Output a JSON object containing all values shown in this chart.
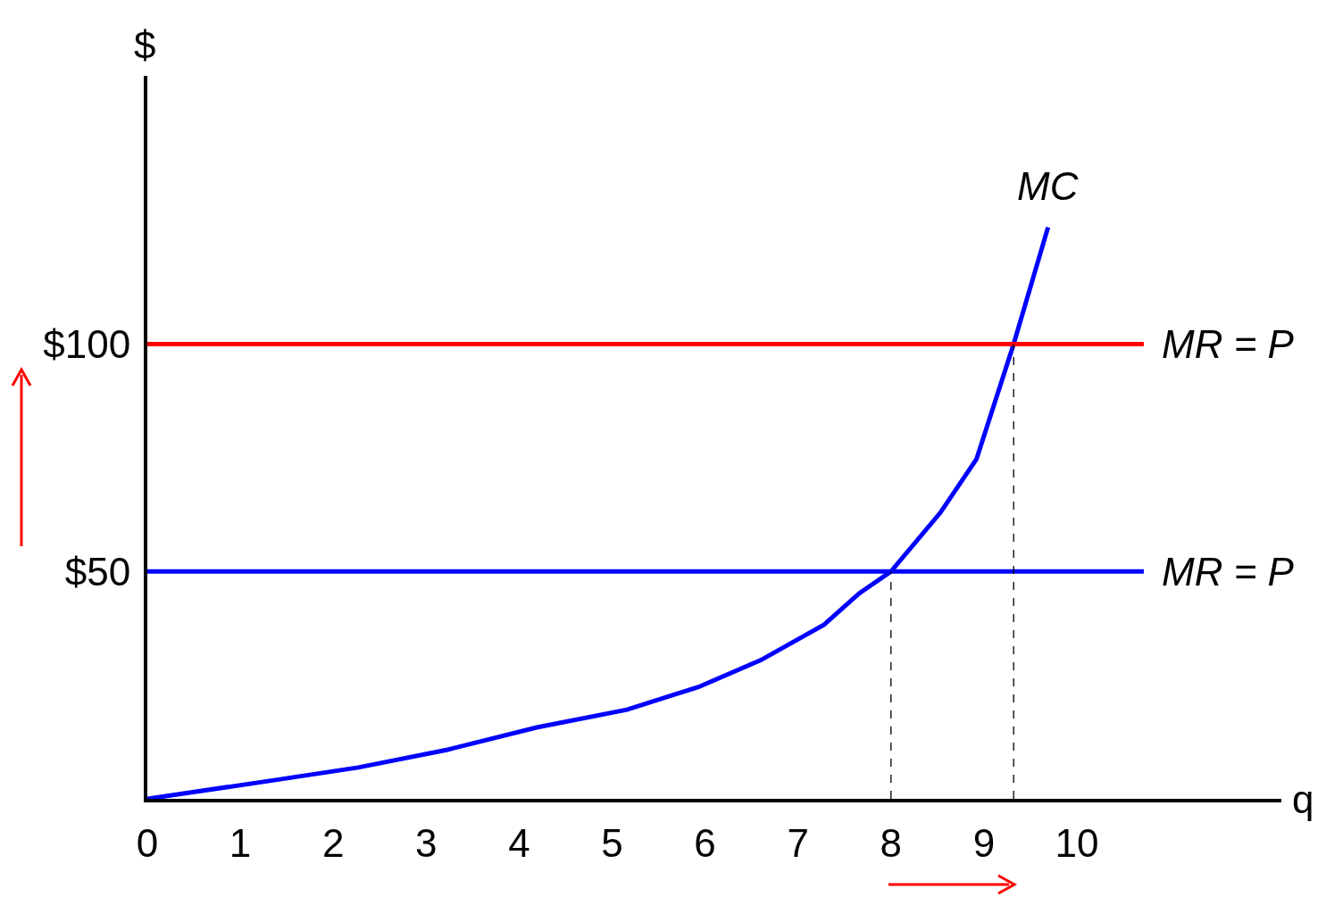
{
  "chart_data": {
    "type": "line",
    "xlabel": "q",
    "ylabel": "$",
    "xlim": [
      0,
      12.2
    ],
    "ylim": [
      0,
      159
    ],
    "xticks": [
      0,
      1,
      2,
      3,
      4,
      5,
      6,
      7,
      8,
      9,
      10
    ],
    "yticks": [
      {
        "value": 50,
        "label": "$50"
      },
      {
        "value": 100,
        "label": "$100"
      }
    ],
    "grid": false,
    "legend": false,
    "marker": "none",
    "series": [
      {
        "name": "MC",
        "color": "#0000ff",
        "x": [
          0,
          1.3,
          2.27,
          3.23,
          4.19,
          5.16,
          5.93,
          6.6,
          7.28,
          7.66,
          8,
          8.53,
          8.92,
          9.32,
          9.69
        ],
        "values": [
          0,
          3.9,
          6.9,
          10.8,
          15.7,
          19.6,
          24.6,
          30.5,
          38.3,
          45.2,
          50,
          62.9,
          74.7,
          100,
          125.7
        ]
      },
      {
        "name": "MR = P",
        "color": "#ff0000",
        "x": [
          0,
          10.72
        ],
        "values": [
          100,
          100
        ]
      },
      {
        "name": "MR = P",
        "color": "#0000ff",
        "x": [
          0,
          10.72
        ],
        "values": [
          50,
          50
        ]
      },
      {
        "color": "#000000",
        "line_style": "dashed",
        "x": [
          8,
          8
        ],
        "values": [
          0,
          50
        ]
      },
      {
        "color": "#000000",
        "line_style": "dashed",
        "x": [
          9.32,
          9.32
        ],
        "values": [
          0,
          100
        ]
      }
    ]
  }
}
